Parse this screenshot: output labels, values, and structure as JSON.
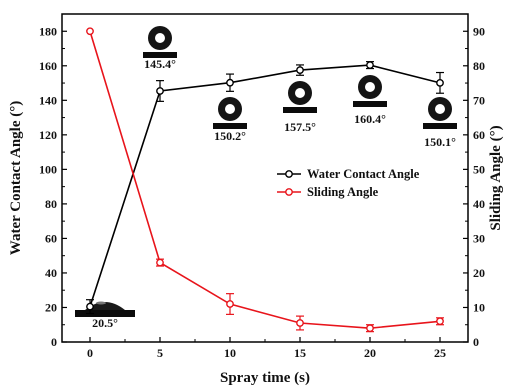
{
  "chart_data": {
    "type": "line",
    "xlabel": "Spray time (s)",
    "ylabel_left": "Water Contact Angle (°)",
    "ylabel_right": "Sliding Angle (°)",
    "x": [
      0,
      5,
      10,
      15,
      20,
      25
    ],
    "xlim": [
      -2,
      27
    ],
    "xticks": [
      "0",
      "5",
      "10",
      "15",
      "20",
      "25"
    ],
    "ylim_left": [
      0,
      190
    ],
    "yticks_left": [
      "0",
      "20",
      "40",
      "60",
      "80",
      "100",
      "120",
      "140",
      "160",
      "180"
    ],
    "ylim_right": [
      0,
      95
    ],
    "yticks_right": [
      "0",
      "10",
      "20",
      "30",
      "40",
      "50",
      "60",
      "70",
      "80",
      "90"
    ],
    "legend_position": "center-right",
    "series": [
      {
        "name": "Water Contact Angle",
        "axis": "left",
        "color": "#000000",
        "values": [
          20.5,
          145.4,
          150.2,
          157.5,
          160.4,
          150.1
        ],
        "errors": [
          4,
          6,
          5,
          3,
          2,
          6
        ]
      },
      {
        "name": "Sliding Angle",
        "axis": "right",
        "color": "#e8141b",
        "values": [
          90,
          23,
          11,
          5.5,
          4,
          6
        ],
        "errors": [
          0,
          1,
          3,
          2,
          1,
          1
        ]
      }
    ],
    "annotations": [
      {
        "x": 0,
        "value": 20.5,
        "label": "20.5°",
        "drop": "flat"
      },
      {
        "x": 5,
        "value": 145.4,
        "label": "145.4°",
        "drop": "sphere"
      },
      {
        "x": 10,
        "value": 150.2,
        "label": "150.2°",
        "drop": "sphere"
      },
      {
        "x": 15,
        "value": 157.5,
        "label": "157.5°",
        "drop": "sphere"
      },
      {
        "x": 20,
        "value": 160.4,
        "label": "160.4°",
        "drop": "sphere"
      },
      {
        "x": 25,
        "value": 150.1,
        "label": "150.1°",
        "drop": "sphere"
      }
    ]
  }
}
